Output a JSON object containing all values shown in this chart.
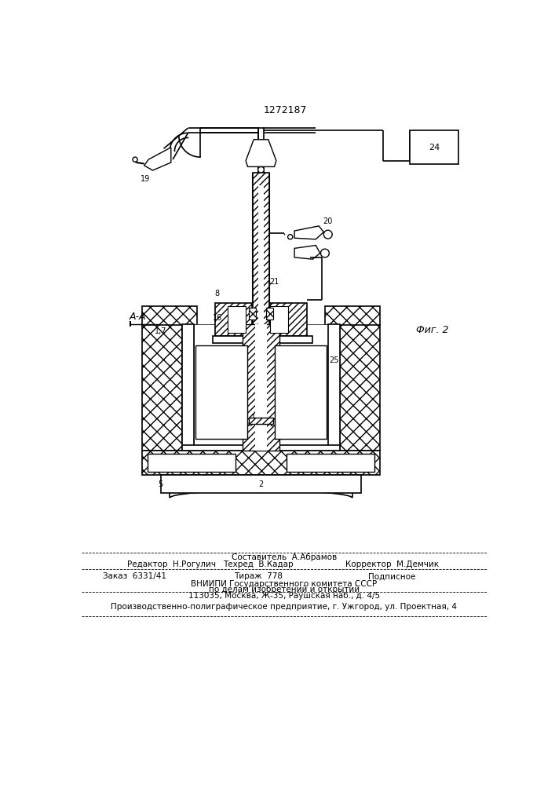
{
  "patent_number": "1272187",
  "background_color": "#ffffff",
  "footer": {
    "sestavitel": "Составитель  А.Абрамов",
    "redaktor": "Редактор  Н.Рогулич",
    "tekhred": "Техред  В.Кадар",
    "korrektor": "Корректор  М.Демчик",
    "zakaz": "Заказ  6331/41",
    "tirazh": "Тираж  778",
    "podpisnoe": "Подписное",
    "vniip1": "ВНИИПИ Государственного комитета СССР",
    "vniip2": "по делам изобретений и открытий",
    "vniip3": "113035, Москва, Ж-35, Раушская наб., д. 4/5",
    "predpr": "Производственно-полиграфическое предприятие, г. Ужгород, ул. Проектная, 4"
  }
}
